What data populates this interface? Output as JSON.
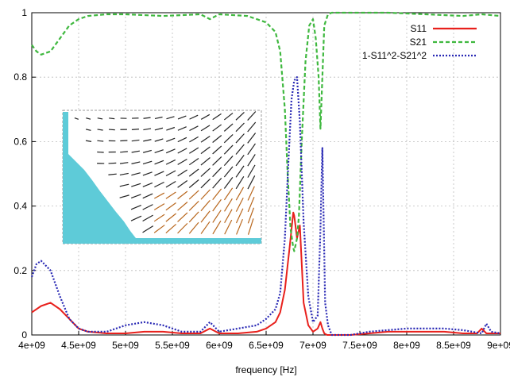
{
  "chart_data": {
    "type": "line",
    "xlabel": "frequency [Hz]",
    "ylabel": "",
    "xlim": [
      4000000000,
      9000000000
    ],
    "ylim": [
      0,
      1
    ],
    "grid": true,
    "legend_position": "top-right",
    "x_ticks": [
      {
        "value": 4000000000,
        "label": "4e+09"
      },
      {
        "value": 4500000000,
        "label": "4.5e+09"
      },
      {
        "value": 5000000000,
        "label": "5e+09"
      },
      {
        "value": 5500000000,
        "label": "5.5e+09"
      },
      {
        "value": 6000000000,
        "label": "6e+09"
      },
      {
        "value": 6500000000,
        "label": "6.5e+09"
      },
      {
        "value": 7000000000,
        "label": "7e+09"
      },
      {
        "value": 7500000000,
        "label": "7.5e+09"
      },
      {
        "value": 8000000000,
        "label": "8e+09"
      },
      {
        "value": 8500000000,
        "label": "8.5e+09"
      },
      {
        "value": 9000000000,
        "label": "9e+09"
      }
    ],
    "y_ticks": [
      {
        "value": 0,
        "label": "0"
      },
      {
        "value": 0.2,
        "label": "0.2"
      },
      {
        "value": 0.4,
        "label": "0.4"
      },
      {
        "value": 0.6,
        "label": "0.6"
      },
      {
        "value": 0.8,
        "label": "0.8"
      },
      {
        "value": 1,
        "label": "1"
      }
    ],
    "series": [
      {
        "name": "S11",
        "color": "#e8201c",
        "style": "solid",
        "x": [
          4000000000,
          4100000000,
          4200000000,
          4300000000,
          4400000000,
          4500000000,
          4600000000,
          4800000000,
          5000000000,
          5200000000,
          5400000000,
          5600000000,
          5800000000,
          5900000000,
          6000000000,
          6200000000,
          6400000000,
          6500000000,
          6600000000,
          6650000000,
          6700000000,
          6750000000,
          6790000000,
          6800000000,
          6830000000,
          6860000000,
          6900000000,
          6950000000,
          7000000000,
          7050000000,
          7080000000,
          7100000000,
          7120000000,
          7150000000,
          7200000000,
          7400000000,
          7600000000,
          7800000000,
          8000000000,
          8200000000,
          8400000000,
          8600000000,
          8750000000,
          8800000000,
          8850000000,
          9000000000
        ],
        "y": [
          0.07,
          0.09,
          0.1,
          0.08,
          0.05,
          0.02,
          0.01,
          0.005,
          0.005,
          0.01,
          0.01,
          0.005,
          0.005,
          0.02,
          0.005,
          0.005,
          0.01,
          0.02,
          0.04,
          0.07,
          0.14,
          0.27,
          0.38,
          0.37,
          0.3,
          0.34,
          0.1,
          0.03,
          0.01,
          0.02,
          0.04,
          0.02,
          0.005,
          0.0,
          0.0,
          0.0,
          0.005,
          0.01,
          0.01,
          0.01,
          0.01,
          0.005,
          0.005,
          0.02,
          0.005,
          0.005
        ]
      },
      {
        "name": "S21",
        "color": "#3fb83f",
        "style": "dashed",
        "x": [
          4000000000,
          4050000000,
          4100000000,
          4200000000,
          4300000000,
          4400000000,
          4500000000,
          4600000000,
          4800000000,
          5000000000,
          5400000000,
          5800000000,
          5900000000,
          6000000000,
          6300000000,
          6500000000,
          6600000000,
          6650000000,
          6700000000,
          6730000000,
          6760000000,
          6790000000,
          6800000000,
          6830000000,
          6850000000,
          6880000000,
          6920000000,
          6960000000,
          7000000000,
          7030000000,
          7060000000,
          7080000000,
          7100000000,
          7120000000,
          7160000000,
          7200000000,
          7400000000,
          7800000000,
          8200000000,
          8600000000,
          8800000000,
          9000000000
        ],
        "y": [
          0.9,
          0.88,
          0.87,
          0.88,
          0.92,
          0.96,
          0.98,
          0.99,
          0.995,
          0.995,
          0.99,
          0.995,
          0.98,
          0.995,
          0.99,
          0.97,
          0.94,
          0.88,
          0.7,
          0.5,
          0.33,
          0.27,
          0.26,
          0.3,
          0.37,
          0.6,
          0.85,
          0.96,
          0.98,
          0.92,
          0.8,
          0.64,
          0.8,
          0.96,
          0.995,
          1.0,
          1.0,
          1.0,
          0.995,
          0.99,
          0.995,
          0.99
        ]
      },
      {
        "name": "1-S11^2-S21^2",
        "color": "#2828b4",
        "style": "dotted",
        "x": [
          4000000000,
          4050000000,
          4100000000,
          4200000000,
          4300000000,
          4400000000,
          4500000000,
          4600000000,
          4800000000,
          5000000000,
          5200000000,
          5400000000,
          5600000000,
          5800000000,
          5900000000,
          6000000000,
          6200000000,
          6400000000,
          6500000000,
          6600000000,
          6650000000,
          6700000000,
          6740000000,
          6770000000,
          6800000000,
          6830000000,
          6860000000,
          6900000000,
          6950000000,
          7000000000,
          7050000000,
          7080000000,
          7100000000,
          7130000000,
          7160000000,
          7200000000,
          7400000000,
          7600000000,
          7800000000,
          8000000000,
          8200000000,
          8400000000,
          8600000000,
          8700000000,
          8800000000,
          8850000000,
          8900000000,
          9000000000
        ],
        "y": [
          0.18,
          0.22,
          0.23,
          0.2,
          0.12,
          0.05,
          0.02,
          0.01,
          0.01,
          0.03,
          0.04,
          0.03,
          0.01,
          0.01,
          0.04,
          0.01,
          0.02,
          0.03,
          0.05,
          0.08,
          0.13,
          0.3,
          0.55,
          0.73,
          0.79,
          0.8,
          0.66,
          0.35,
          0.12,
          0.04,
          0.06,
          0.33,
          0.58,
          0.1,
          0.03,
          0.0,
          0.0,
          0.01,
          0.015,
          0.02,
          0.02,
          0.02,
          0.015,
          0.01,
          0.005,
          0.035,
          0.01,
          0.005
        ]
      }
    ]
  },
  "inset": {
    "description_icon": "vector-field-inset"
  }
}
